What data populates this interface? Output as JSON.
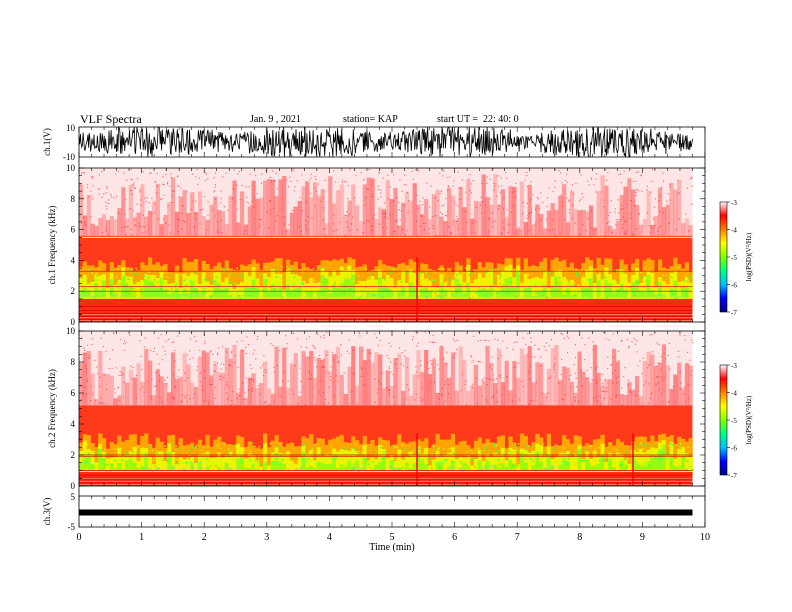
{
  "header": {
    "title": "VLF Spectra",
    "date": "Jan. 9 , 2021",
    "station": "station= KAP",
    "start": "start UT =  22: 40: 0"
  },
  "chart_data": [
    {
      "type": "line",
      "panel": "ch1-waveform",
      "ylabel": "ch.1(V)",
      "ylim": [
        -10,
        10
      ],
      "yticks": [
        "10",
        "-10"
      ],
      "xlim": [
        0,
        10
      ]
    },
    {
      "type": "heatmap",
      "panel": "ch1-spectrogram",
      "ylabel": "ch.1 Frequency (kHz)",
      "ylim": [
        0,
        10
      ],
      "yticks": [
        "0",
        "2",
        "4",
        "6",
        "8",
        "10"
      ],
      "xlim": [
        0,
        10
      ],
      "data_end_min": 9.8,
      "colorbar": {
        "label": "log(PSD)(V²/Hz)",
        "range": [
          -7,
          -3
        ],
        "ticks": [
          "-3",
          "-4",
          "-5",
          "-6",
          "-7"
        ]
      }
    },
    {
      "type": "heatmap",
      "panel": "ch2-spectrogram",
      "ylabel": "ch.2 Frequency (kHz)",
      "ylim": [
        0,
        10
      ],
      "yticks": [
        "0",
        "2",
        "4",
        "6",
        "8",
        "10"
      ],
      "xlim": [
        0,
        10
      ],
      "data_end_min": 9.8,
      "colorbar": {
        "label": "log(PSD)(V²/Hz)",
        "range": [
          -7,
          -3
        ],
        "ticks": [
          "-3",
          "-4",
          "-5",
          "-6",
          "-7"
        ]
      }
    },
    {
      "type": "line",
      "panel": "ch3-waveform",
      "ylabel": "ch.3(V)",
      "ylim": [
        -5,
        5
      ],
      "yticks": [
        "5",
        "-5"
      ],
      "xlim": [
        0,
        10
      ],
      "xlabel": "Time (min)",
      "xticks": [
        "0",
        "1",
        "2",
        "3",
        "4",
        "5",
        "6",
        "7",
        "8",
        "9",
        "10"
      ]
    }
  ],
  "colors": {
    "colormap": [
      "#000080",
      "#0000ff",
      "#00c0ff",
      "#00ff80",
      "#80ff00",
      "#ffff00",
      "#ff8000",
      "#ff0000",
      "#ffffff"
    ]
  }
}
